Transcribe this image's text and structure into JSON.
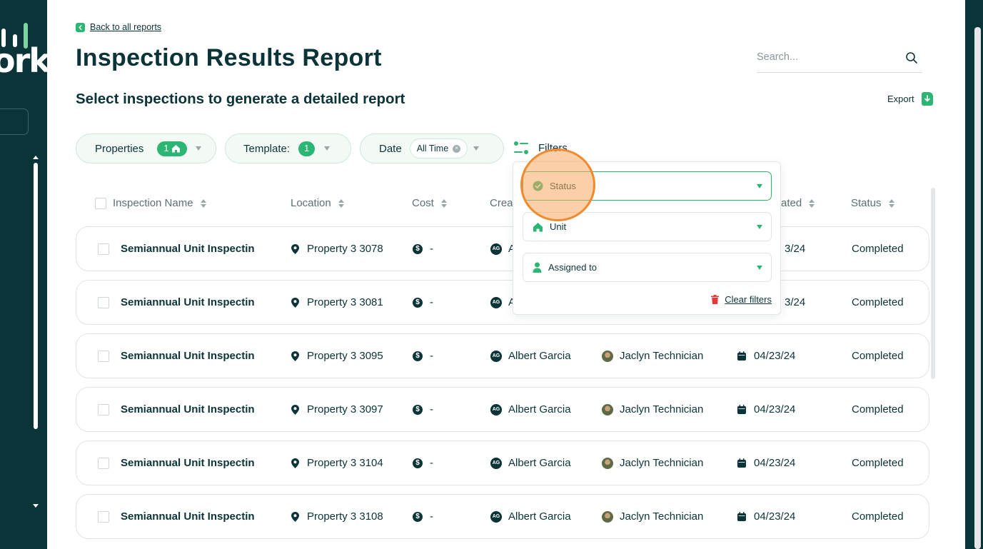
{
  "sidebar": {
    "logo_text": "ork"
  },
  "header": {
    "back_link": "Back to all reports",
    "title": "Inspection Results Report",
    "subtitle": "Select inspections to generate a detailed report",
    "search_placeholder": "Search...",
    "export_label": "Export"
  },
  "filter_bar": {
    "properties_label": "Properties",
    "properties_count": "1",
    "template_label": "Template:",
    "template_count": "1",
    "date_label": "Date",
    "date_value": "All Time",
    "filters_label": "Filters"
  },
  "filters_dropdown": {
    "status_label": "Status",
    "unit_label": "Unit",
    "assigned_label": "Assigned to",
    "clear_label": "Clear filters"
  },
  "table": {
    "columns": {
      "name": "Inspection Name",
      "location": "Location",
      "cost": "Cost",
      "creator": "Crea",
      "date": "ated",
      "status": "Status"
    },
    "rows": [
      {
        "name": "Semiannual Unit Inspectin",
        "location": "Property 3 3078",
        "cost": "-",
        "creator_initials": "AG",
        "creator": "A",
        "assignee": "",
        "date": "3/24",
        "status": "Completed"
      },
      {
        "name": "Semiannual Unit Inspectin",
        "location": "Property 3 3081",
        "cost": "-",
        "creator_initials": "AG",
        "creator": "A",
        "assignee": "",
        "date": "3/24",
        "status": "Completed"
      },
      {
        "name": "Semiannual Unit Inspectin",
        "location": "Property 3 3095",
        "cost": "-",
        "creator_initials": "AG",
        "creator": "Albert Garcia",
        "assignee": "Jaclyn Technician",
        "date": "04/23/24",
        "status": "Completed"
      },
      {
        "name": "Semiannual Unit Inspectin",
        "location": "Property 3 3097",
        "cost": "-",
        "creator_initials": "AG",
        "creator": "Albert Garcia",
        "assignee": "Jaclyn Technician",
        "date": "04/23/24",
        "status": "Completed"
      },
      {
        "name": "Semiannual Unit Inspectin",
        "location": "Property 3 3104",
        "cost": "-",
        "creator_initials": "AG",
        "creator": "Albert Garcia",
        "assignee": "Jaclyn Technician",
        "date": "04/23/24",
        "status": "Completed"
      },
      {
        "name": "Semiannual Unit Inspectin",
        "location": "Property 3 3108",
        "cost": "-",
        "creator_initials": "AG",
        "creator": "Albert Garcia",
        "assignee": "Jaclyn Technician",
        "date": "04/23/24",
        "status": "Completed"
      }
    ]
  },
  "colors": {
    "dark": "#0b3438",
    "accent": "#2bb673",
    "highlight": "#f08a2c",
    "danger": "#e53935"
  }
}
